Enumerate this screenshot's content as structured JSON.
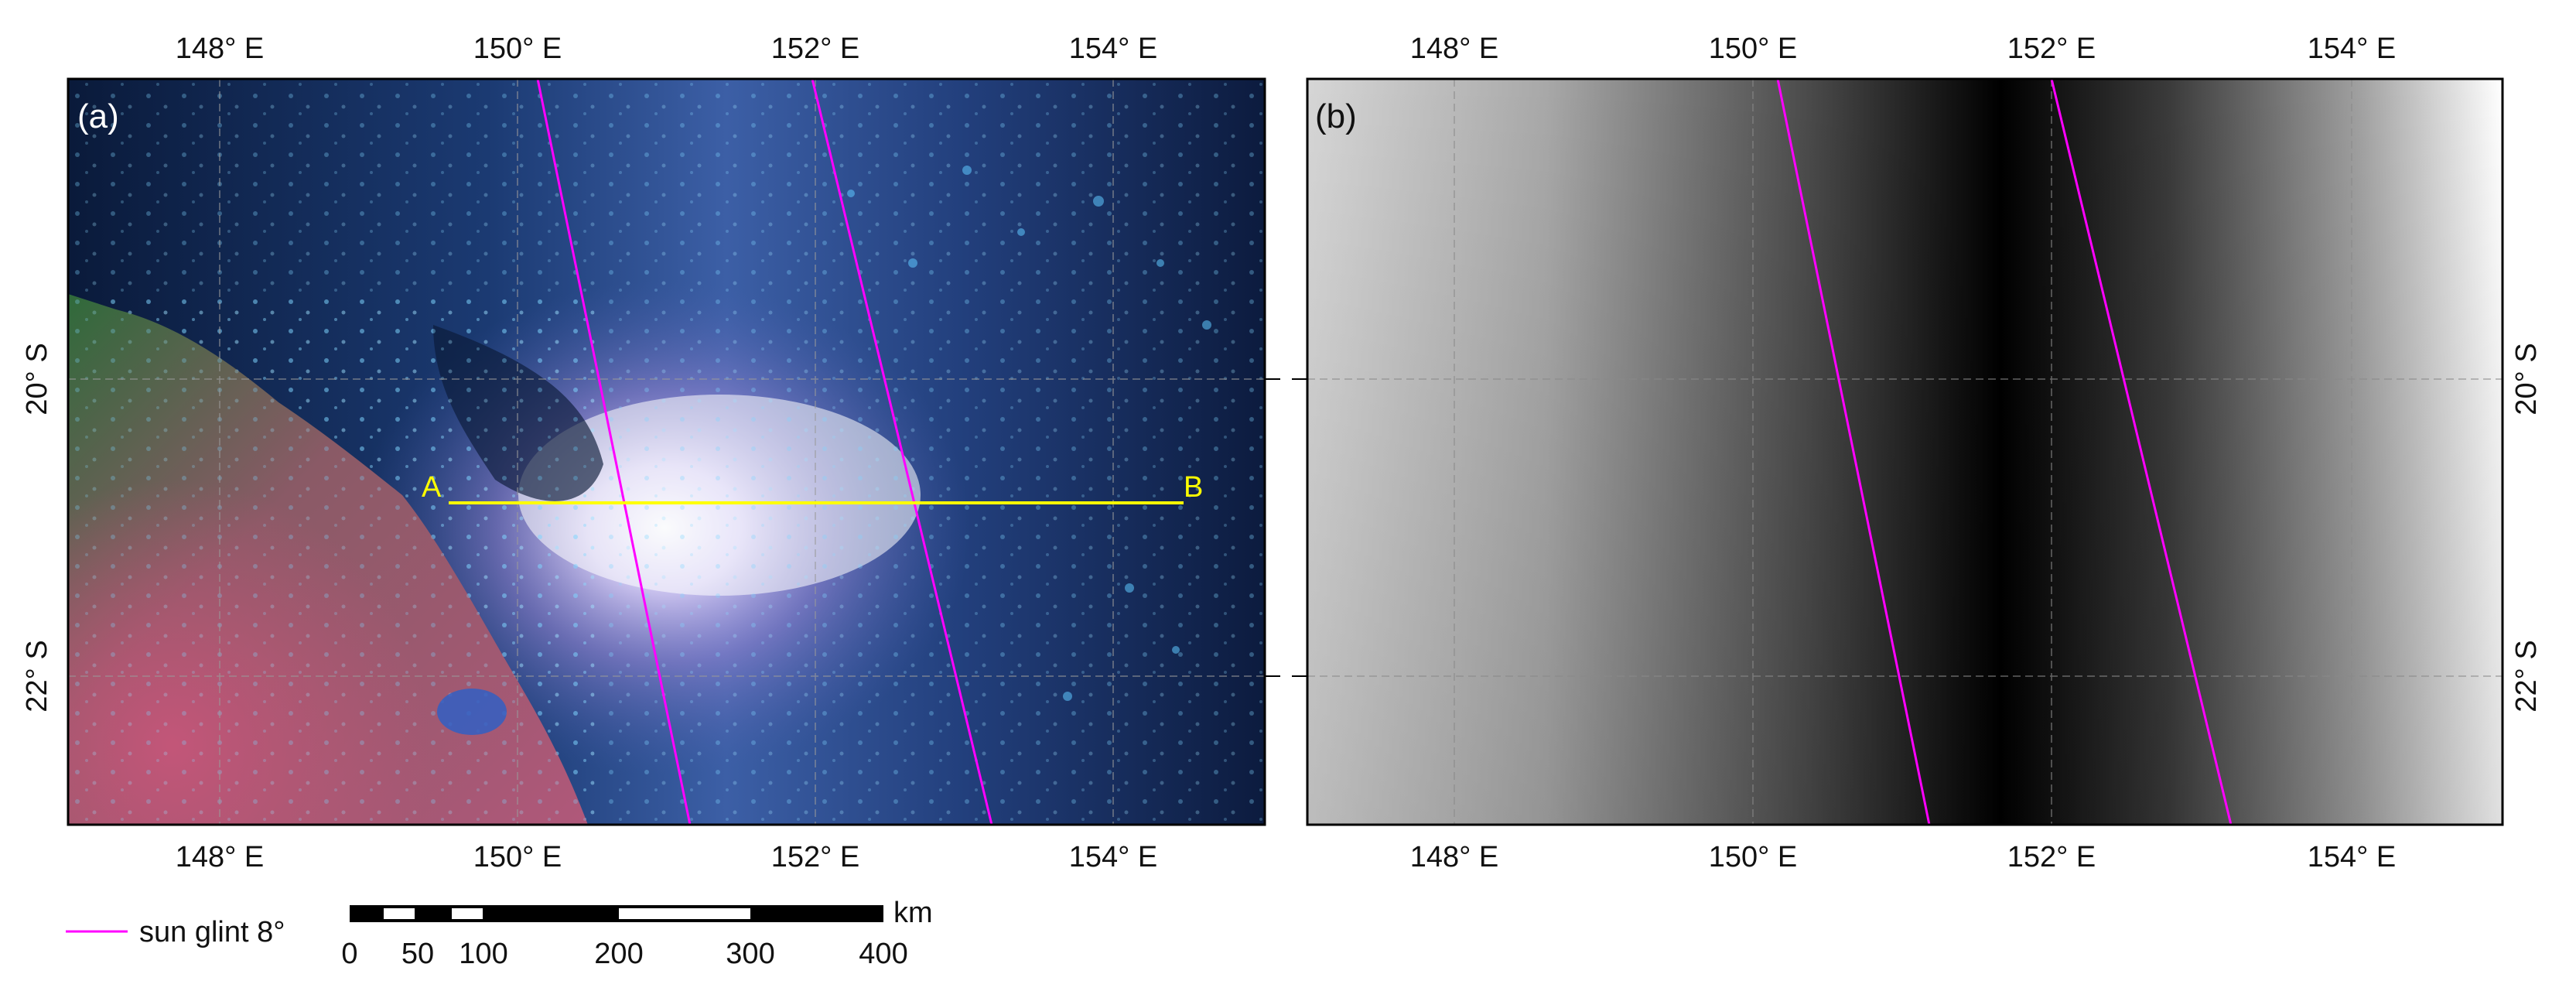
{
  "panel_a": {
    "label": "(a)",
    "lon_ticks_top": [
      "148° E",
      "150° E",
      "152° E",
      "154° E"
    ],
    "lon_ticks_bottom": [
      "148° E",
      "150° E",
      "152° E",
      "154° E"
    ],
    "lat_ticks": [
      "20° S",
      "22° S"
    ],
    "transect": {
      "start_label": "A",
      "end_label": "B"
    }
  },
  "panel_b": {
    "label": "(b)",
    "lon_ticks_top": [
      "148° E",
      "150° E",
      "152° E",
      "154° E"
    ],
    "lon_ticks_bottom": [
      "148° E",
      "150° E",
      "152° E",
      "154° E"
    ],
    "lat_ticks": [
      "20° S",
      "22° S"
    ]
  },
  "legend": {
    "line_label": "sun glint 8°",
    "line_color": "#ff00ff"
  },
  "scale_bar": {
    "unit": "km",
    "labels": [
      "0",
      "50",
      "100",
      "200",
      "300",
      "400"
    ]
  },
  "colors": {
    "transect": "#ffff00",
    "glint_contour": "#ff00ff",
    "frame": "#000000"
  }
}
